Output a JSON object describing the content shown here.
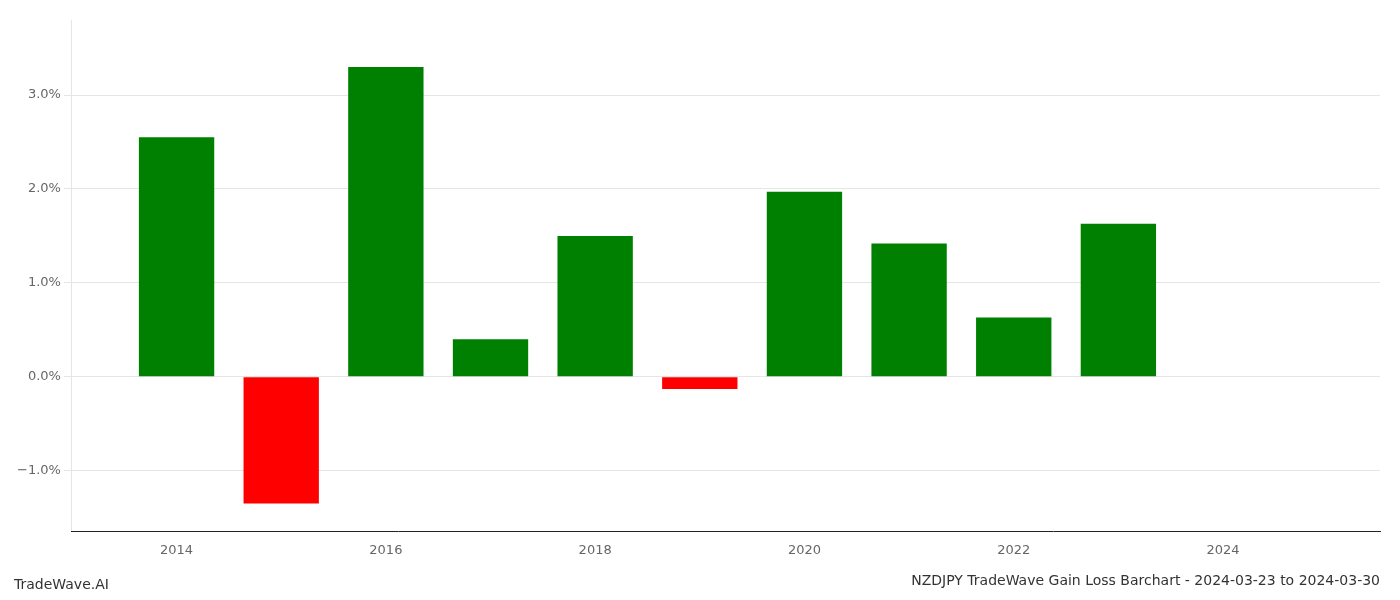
{
  "chart_data": {
    "type": "bar",
    "title": "NZDJPY TradeWave Gain Loss Barchart - 2024-03-23 to 2024-03-30",
    "annotations": [
      "TradeWave.AI"
    ],
    "x": [
      2014,
      2015,
      2016,
      2017,
      2018,
      2019,
      2020,
      2021,
      2022,
      2023
    ],
    "values": [
      0.0255,
      -0.0135,
      0.033,
      0.004,
      0.015,
      -0.0013,
      0.0197,
      0.0142,
      0.0063,
      0.0163
    ],
    "colors": [
      "#008000",
      "#ff0000",
      "#008000",
      "#008000",
      "#008000",
      "#ff0000",
      "#008000",
      "#008000",
      "#008000",
      "#008000"
    ],
    "xlim": [
      2013.0,
      2025.5
    ],
    "xticks": [
      2014,
      2016,
      2018,
      2020,
      2022,
      2024
    ],
    "ylim": [
      -0.0165,
      0.038
    ],
    "yticks": [
      {
        "value": -0.01,
        "label": "−1.0%"
      },
      {
        "value": 0.0,
        "label": "0.0%"
      },
      {
        "value": 0.01,
        "label": "1.0%"
      },
      {
        "value": 0.02,
        "label": "2.0%"
      },
      {
        "value": 0.03,
        "label": "3.0%"
      }
    ],
    "grid": "y"
  }
}
